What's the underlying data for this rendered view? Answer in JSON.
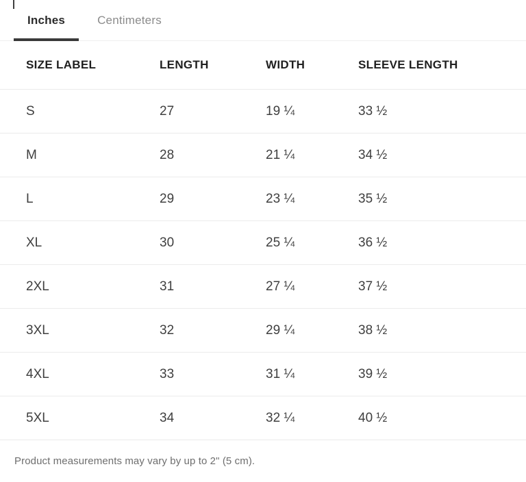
{
  "tabs": [
    {
      "label": "Inches",
      "active": true
    },
    {
      "label": "Centimeters",
      "active": false
    }
  ],
  "table": {
    "columns": [
      "SIZE LABEL",
      "LENGTH",
      "WIDTH",
      "SLEEVE LENGTH"
    ],
    "rows": [
      {
        "size_label": "S",
        "length": "27",
        "width": "19 ¼",
        "sleeve_length": "33 ½"
      },
      {
        "size_label": "M",
        "length": "28",
        "width": "21 ¼",
        "sleeve_length": "34 ½"
      },
      {
        "size_label": "L",
        "length": "29",
        "width": "23 ¼",
        "sleeve_length": "35 ½"
      },
      {
        "size_label": "XL",
        "length": "30",
        "width": "25 ¼",
        "sleeve_length": "36 ½"
      },
      {
        "size_label": "2XL",
        "length": "31",
        "width": "27 ¼",
        "sleeve_length": "37 ½"
      },
      {
        "size_label": "3XL",
        "length": "32",
        "width": "29 ¼",
        "sleeve_length": "38 ½"
      },
      {
        "size_label": "4XL",
        "length": "33",
        "width": "31 ¼",
        "sleeve_length": "39 ½"
      },
      {
        "size_label": "5XL",
        "length": "34",
        "width": "32 ¼",
        "sleeve_length": "40 ½"
      }
    ]
  },
  "footer": {
    "note": "Product measurements may vary by up to 2\" (5 cm)."
  },
  "colors": {
    "background": "#ffffff",
    "active_tab_text": "#2b2b2b",
    "inactive_tab_text": "#8b8b8b",
    "active_tab_underline": "#3a3a3a",
    "tabbar_border": "#efefef",
    "row_divider": "#ebebeb",
    "header_text": "#1f1f1f",
    "cell_text": "#3f3f3f",
    "note_text": "#6e6e6e"
  }
}
